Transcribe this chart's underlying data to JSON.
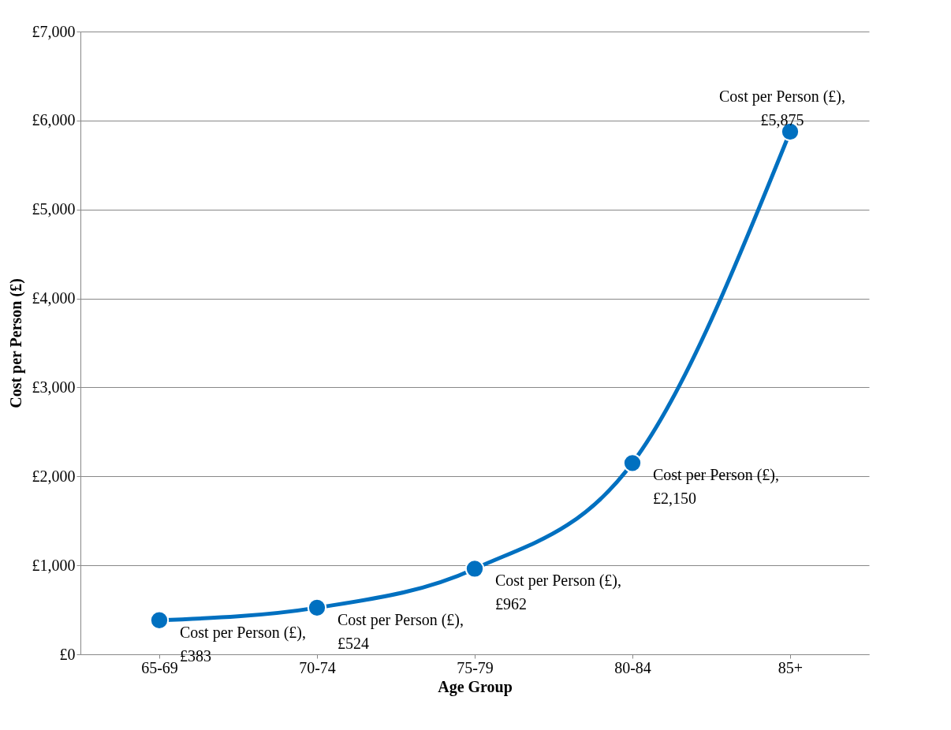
{
  "chart_data": {
    "type": "line",
    "xlabel": "Age Group",
    "ylabel": "Cost per Person (£)",
    "categories": [
      "65-69",
      "70-74",
      "75-79",
      "80-84",
      "85+"
    ],
    "series": [
      {
        "color": "#0070c0",
        "values": [
          383,
          524,
          962,
          2150,
          5875
        ],
        "value_labels": [
          "Cost per Person (£), £383",
          "Cost per Person (£), £524",
          "Cost per Person (£), £962",
          "Cost per Person (£), £2,150",
          "Cost per Person (£), £5,875"
        ]
      }
    ],
    "ylim": [
      0,
      7000
    ],
    "yticks": [
      {
        "value": 0,
        "label": "£0"
      },
      {
        "value": 1000,
        "label": "£1,000"
      },
      {
        "value": 2000,
        "label": "£2,000"
      },
      {
        "value": 3000,
        "label": "£3,000"
      },
      {
        "value": 4000,
        "label": "£4,000"
      },
      {
        "value": 5000,
        "label": "£5,000"
      },
      {
        "value": 6000,
        "label": "£6,000"
      },
      {
        "value": 7000,
        "label": "£7,000"
      }
    ],
    "grid": "y",
    "marker": "circle",
    "line_style": "solid"
  }
}
